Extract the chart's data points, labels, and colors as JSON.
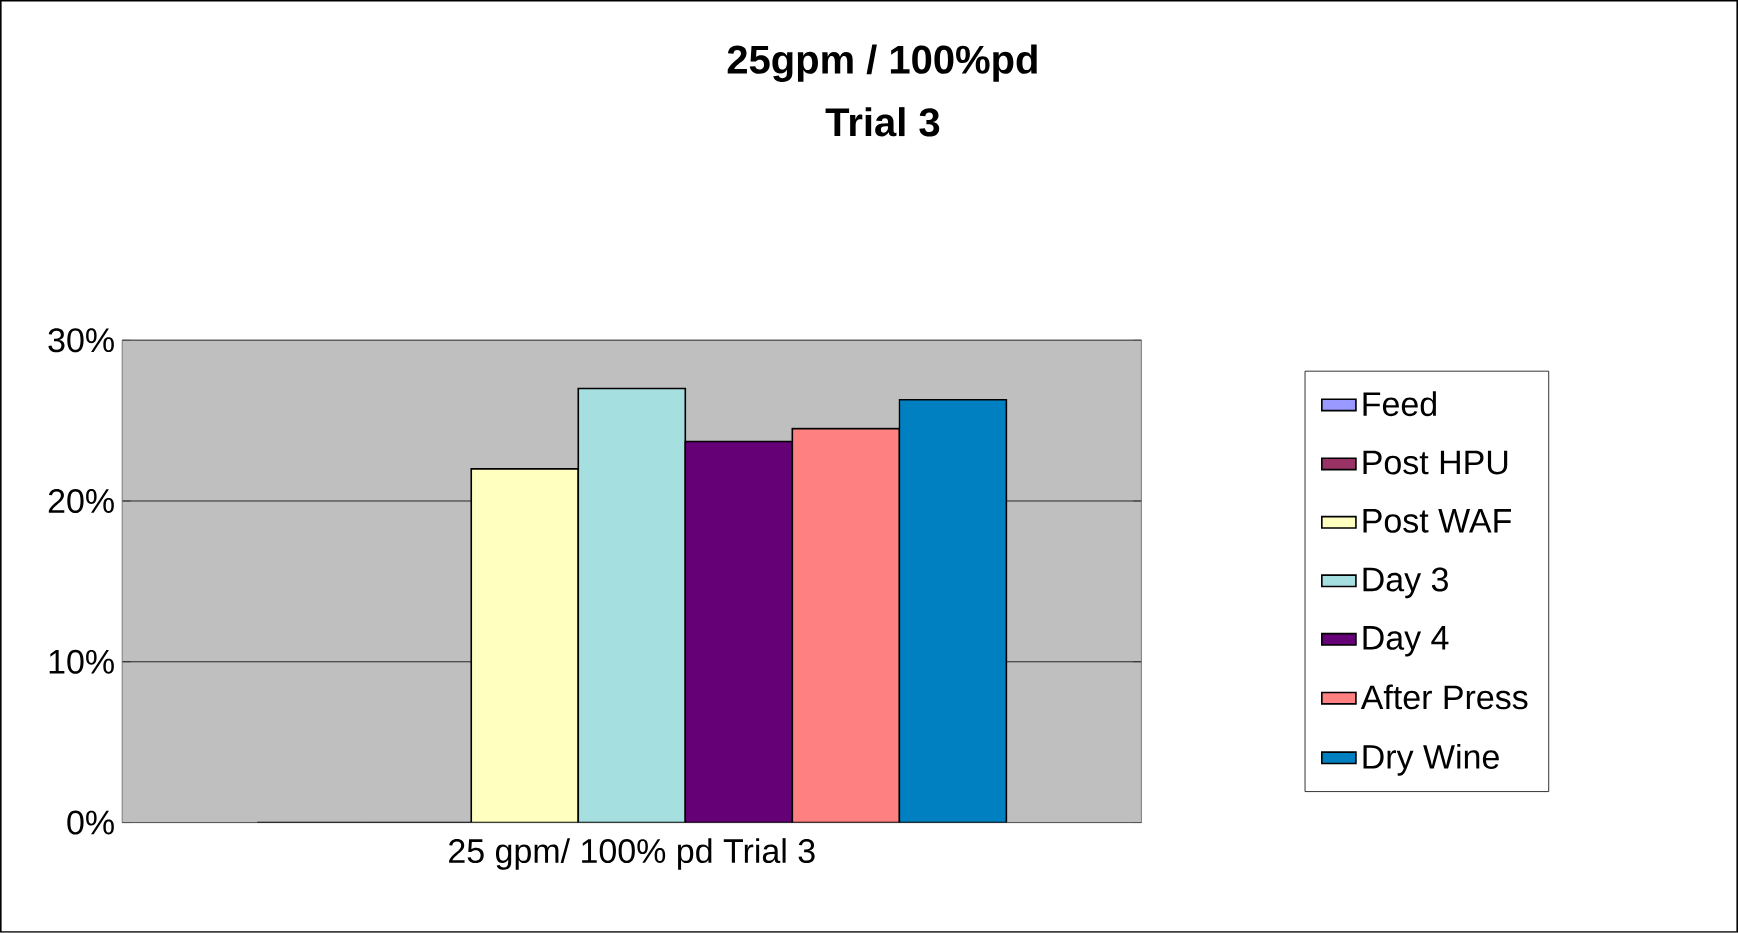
{
  "chart_data": {
    "type": "bar",
    "title": "25gpm / 100%pd",
    "subtitle": "Trial 3",
    "categories": [
      "25 gpm/ 100% pd Trial 3"
    ],
    "series": [
      {
        "name": "Feed",
        "color": "#9999ff",
        "values": [
          0
        ]
      },
      {
        "name": "Post HPU",
        "color": "#993366",
        "values": [
          0
        ]
      },
      {
        "name": "Post WAF",
        "color": "#ffffc0",
        "values": [
          22
        ]
      },
      {
        "name": "Day 3",
        "color": "#a6dfe0",
        "values": [
          27
        ]
      },
      {
        "name": "Day 4",
        "color": "#660077",
        "values": [
          23.7
        ]
      },
      {
        "name": "After Press",
        "color": "#ff8080",
        "values": [
          24.5
        ]
      },
      {
        "name": "Dry Wine",
        "color": "#0080c0",
        "values": [
          26.3
        ]
      }
    ],
    "ylim": [
      0,
      30
    ],
    "yticks": [
      {
        "value": 0,
        "label": "0%"
      },
      {
        "value": 10,
        "label": "10%"
      },
      {
        "value": 20,
        "label": "20%"
      },
      {
        "value": 30,
        "label": "30%"
      }
    ],
    "grid": "y",
    "legend": "right"
  }
}
